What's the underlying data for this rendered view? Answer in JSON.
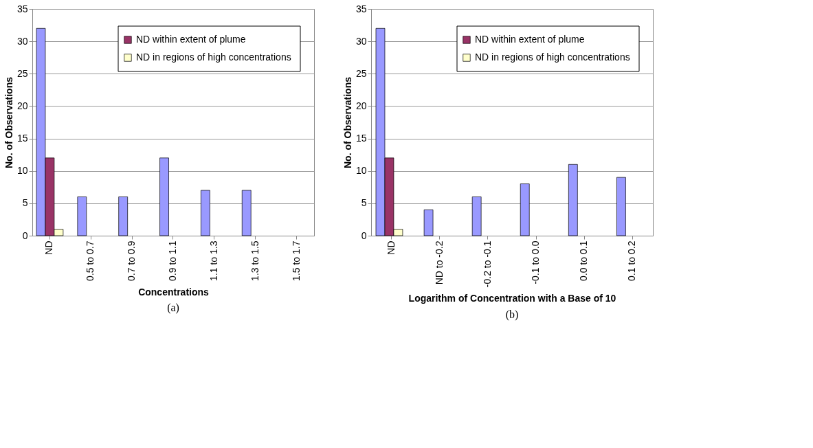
{
  "chart_data": [
    {
      "type": "bar",
      "categories": [
        "ND",
        "0.5 to 0.7",
        "0.7 to 0.9",
        "0.9 to 1.1",
        "1.1 to 1.3",
        "1.3 to 1.5",
        "1.5 to 1.7"
      ],
      "xlabel": "Concentrations",
      "ylabel": "No. of Observations",
      "ylim": [
        0,
        35
      ],
      "yticks": [
        0,
        5,
        10,
        15,
        20,
        25,
        30,
        35
      ],
      "grid": "y",
      "legend": "top right",
      "annotations": [
        "(a)"
      ],
      "series": [
        {
          "color": "#9999ff",
          "values": [
            32,
            6,
            6,
            12,
            7,
            7,
            null
          ]
        },
        {
          "name": "ND within extent of plume",
          "color": "#993366",
          "values": [
            12,
            null,
            null,
            null,
            null,
            null,
            null
          ]
        },
        {
          "name": "ND in regions of high concentrations",
          "color": "#ffffcc",
          "values": [
            1,
            null,
            null,
            null,
            null,
            null,
            null
          ]
        }
      ]
    },
    {
      "type": "bar",
      "categories": [
        "ND",
        "ND to -0.2",
        "-0.2 to -0.1",
        "-0.1 to 0.0",
        "0.0 to 0.1",
        "0.1 to 0.2"
      ],
      "xlabel": "Logarithm of Concentration with a Base of 10",
      "ylabel": "No. of Observations",
      "ylim": [
        0,
        35
      ],
      "yticks": [
        0,
        5,
        10,
        15,
        20,
        25,
        30,
        35
      ],
      "grid": "y",
      "legend": "top right",
      "annotations": [
        "(b)"
      ],
      "series": [
        {
          "color": "#9999ff",
          "values": [
            32,
            4,
            6,
            8,
            11,
            9
          ]
        },
        {
          "name": "ND within extent of plume",
          "color": "#993366",
          "values": [
            12,
            null,
            null,
            null,
            null,
            null
          ]
        },
        {
          "name": "ND in regions of high concentrations",
          "color": "#ffffcc",
          "values": [
            1,
            null,
            null,
            null,
            null,
            null
          ]
        }
      ]
    }
  ]
}
